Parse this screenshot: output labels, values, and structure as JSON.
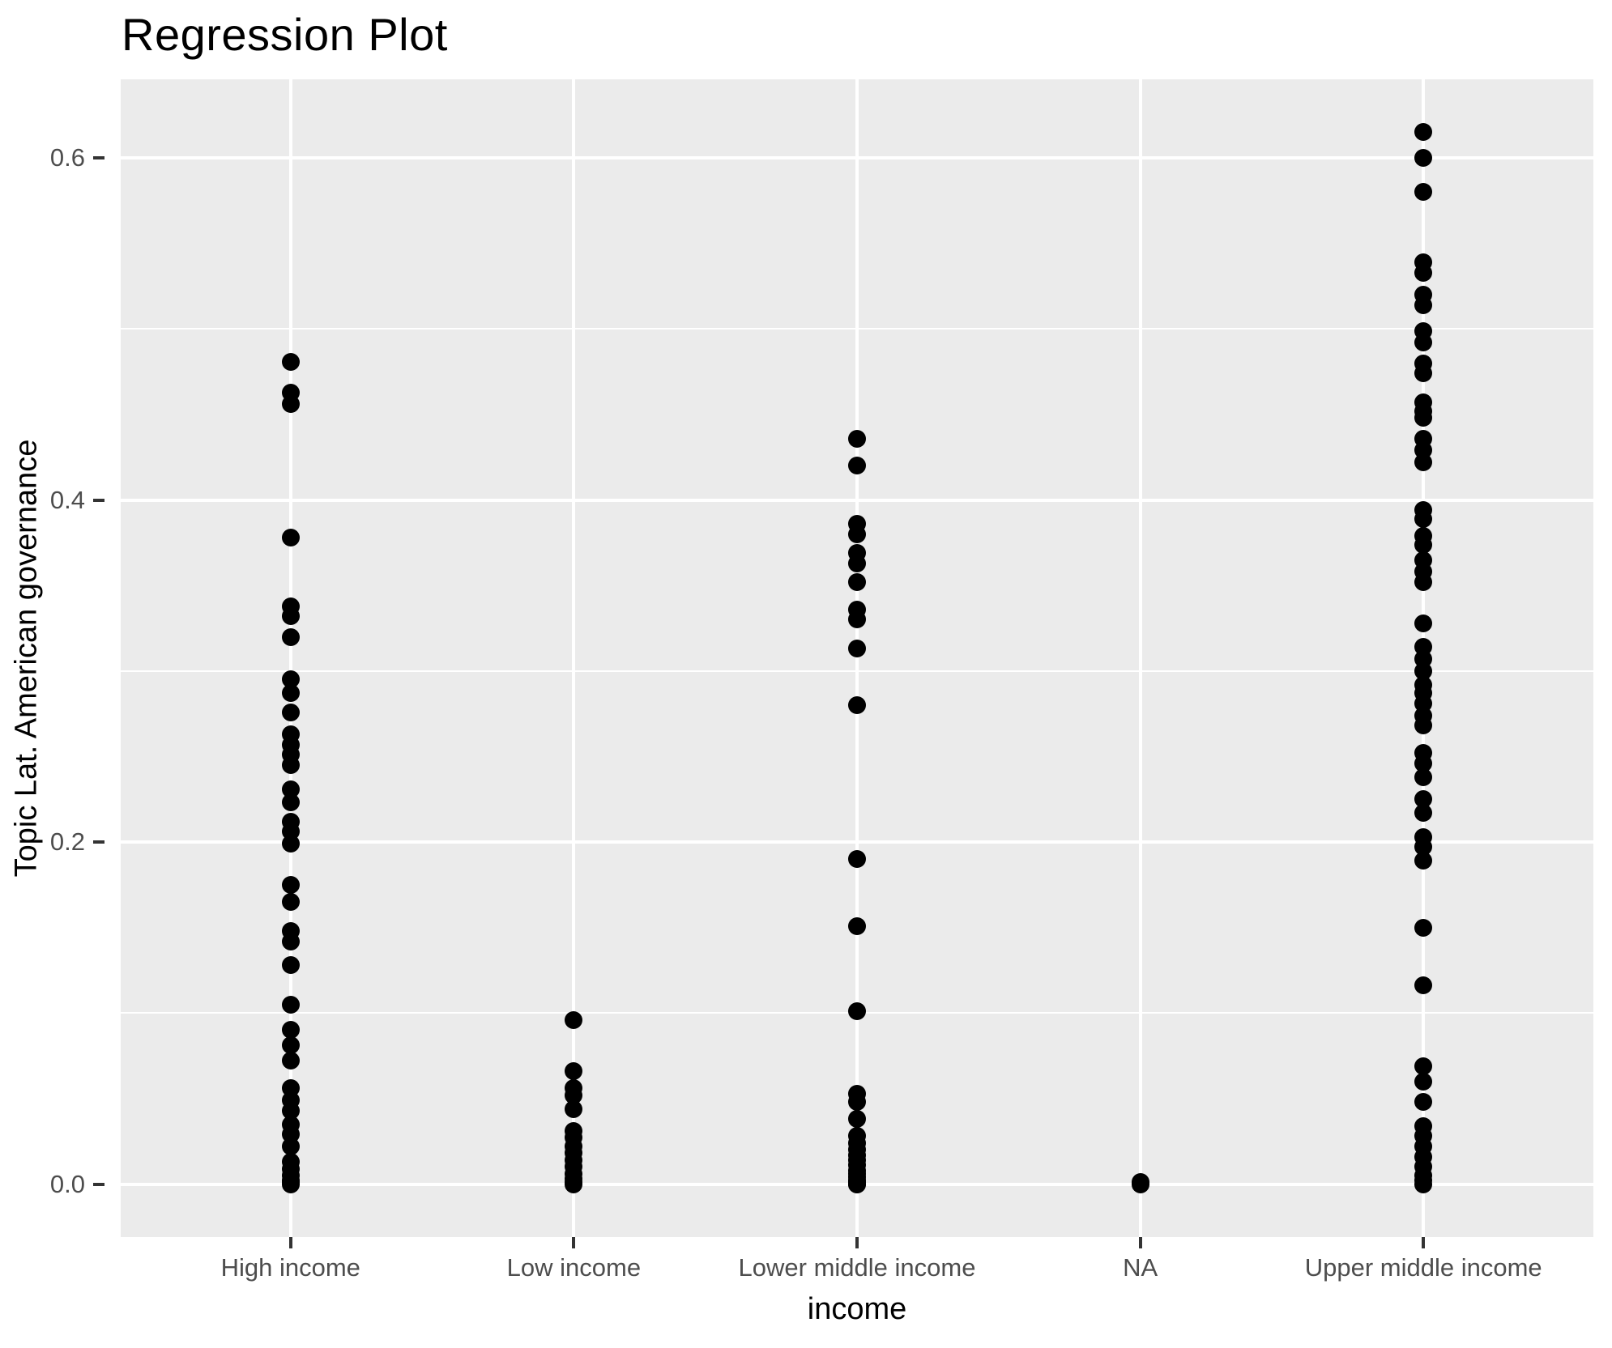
{
  "chart_data": {
    "type": "scatter",
    "title": "Regression Plot",
    "xlabel": "income",
    "ylabel": "Topic Lat. American governance",
    "categories": [
      "High income",
      "Low income",
      "Lower middle income",
      "NA",
      "Upper middle income"
    ],
    "y_tick_labels": [
      "0.0",
      "0.2",
      "0.4",
      "0.6"
    ],
    "y_tick_values": [
      0.0,
      0.2,
      0.4,
      0.6
    ],
    "y_minor_tick_values": [
      0.1,
      0.3,
      0.5
    ],
    "ylim": [
      -0.031,
      0.646
    ],
    "grid": true,
    "legend": false,
    "panel_bg": "#EBEBEB",
    "gridline_color": "#FFFFFF",
    "point_color": "#000000",
    "tick_label_color": "#4D4D4D",
    "series": [
      {
        "name": "High income",
        "values": [
          0.481,
          0.463,
          0.456,
          0.378,
          0.338,
          0.332,
          0.32,
          0.295,
          0.287,
          0.276,
          0.263,
          0.257,
          0.251,
          0.245,
          0.231,
          0.223,
          0.212,
          0.206,
          0.199,
          0.175,
          0.165,
          0.148,
          0.142,
          0.128,
          0.105,
          0.09,
          0.081,
          0.072,
          0.056,
          0.049,
          0.043,
          0.035,
          0.029,
          0.022,
          0.013,
          0.009,
          0.005,
          0.002,
          0.001,
          0.0
        ]
      },
      {
        "name": "Low income",
        "values": [
          0.096,
          0.066,
          0.056,
          0.052,
          0.044,
          0.031,
          0.027,
          0.022,
          0.018,
          0.014,
          0.01,
          0.006,
          0.003,
          0.001,
          0.0
        ]
      },
      {
        "name": "Lower middle income",
        "values": [
          0.436,
          0.42,
          0.386,
          0.38,
          0.369,
          0.363,
          0.352,
          0.336,
          0.33,
          0.313,
          0.28,
          0.19,
          0.151,
          0.101,
          0.053,
          0.048,
          0.038,
          0.028,
          0.024,
          0.02,
          0.017,
          0.014,
          0.011,
          0.008,
          0.006,
          0.004,
          0.002,
          0.001,
          0.0,
          0.0
        ]
      },
      {
        "name": "NA",
        "values": [
          0.001,
          0.0
        ]
      },
      {
        "name": "Upper middle income",
        "values": [
          0.615,
          0.6,
          0.58,
          0.539,
          0.533,
          0.52,
          0.514,
          0.499,
          0.492,
          0.48,
          0.474,
          0.457,
          0.452,
          0.448,
          0.436,
          0.429,
          0.422,
          0.394,
          0.389,
          0.379,
          0.374,
          0.365,
          0.358,
          0.352,
          0.328,
          0.314,
          0.307,
          0.3,
          0.292,
          0.287,
          0.281,
          0.274,
          0.268,
          0.252,
          0.246,
          0.238,
          0.225,
          0.217,
          0.203,
          0.197,
          0.189,
          0.15,
          0.116,
          0.069,
          0.06,
          0.048,
          0.034,
          0.028,
          0.022,
          0.016,
          0.01,
          0.005,
          0.002,
          0.0
        ]
      }
    ]
  }
}
